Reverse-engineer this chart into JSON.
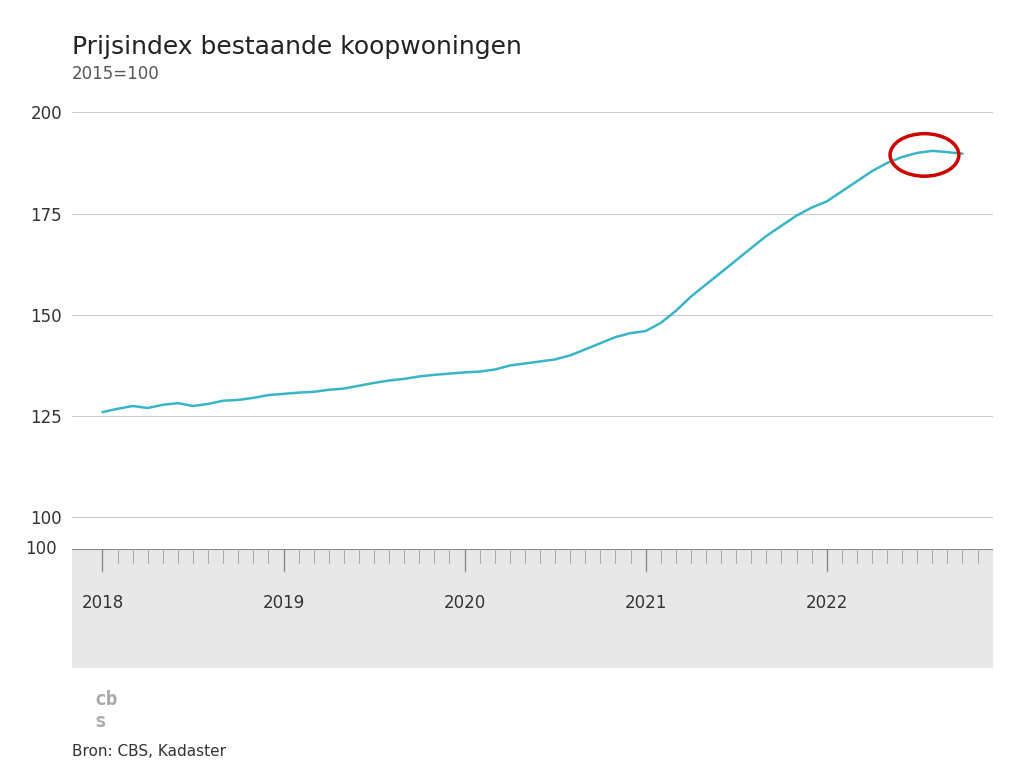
{
  "title": "Prijsindex bestaande koopwoningen",
  "subtitle": "2015=100",
  "source": "Bron: CBS, Kadaster",
  "line_color": "#3ab5c8",
  "line_width": 1.8,
  "background_color": "#ffffff",
  "footer_bg_color": "#e8e8e8",
  "grid_color": "#cccccc",
  "ylim": [
    95,
    205
  ],
  "yticks": [
    100,
    125,
    150,
    175,
    200
  ],
  "circle_color": "#cc0000",
  "circle_linewidth": 2.5,
  "x_data": [
    2018.0,
    2018.083,
    2018.167,
    2018.25,
    2018.333,
    2018.417,
    2018.5,
    2018.583,
    2018.667,
    2018.75,
    2018.833,
    2018.917,
    2019.0,
    2019.083,
    2019.167,
    2019.25,
    2019.333,
    2019.417,
    2019.5,
    2019.583,
    2019.667,
    2019.75,
    2019.833,
    2019.917,
    2020.0,
    2020.083,
    2020.167,
    2020.25,
    2020.333,
    2020.417,
    2020.5,
    2020.583,
    2020.667,
    2020.75,
    2020.833,
    2020.917,
    2021.0,
    2021.083,
    2021.167,
    2021.25,
    2021.333,
    2021.417,
    2021.5,
    2021.583,
    2021.667,
    2021.75,
    2021.833,
    2021.917,
    2022.0,
    2022.083,
    2022.167,
    2022.25,
    2022.333,
    2022.417,
    2022.5,
    2022.583,
    2022.667,
    2022.75
  ],
  "y_data": [
    126.0,
    126.8,
    127.5,
    127.0,
    127.8,
    128.2,
    127.5,
    128.0,
    128.8,
    129.0,
    129.5,
    130.2,
    130.5,
    130.8,
    131.0,
    131.5,
    131.8,
    132.5,
    133.2,
    133.8,
    134.2,
    134.8,
    135.2,
    135.5,
    135.8,
    136.0,
    136.5,
    137.5,
    138.0,
    138.5,
    139.0,
    140.0,
    141.5,
    143.0,
    144.5,
    145.5,
    146.0,
    148.0,
    151.0,
    154.5,
    157.5,
    160.5,
    163.5,
    166.5,
    169.5,
    172.0,
    174.5,
    176.5,
    178.0,
    180.5,
    183.0,
    185.5,
    187.5,
    189.0,
    190.0,
    190.5,
    190.2,
    189.8
  ]
}
